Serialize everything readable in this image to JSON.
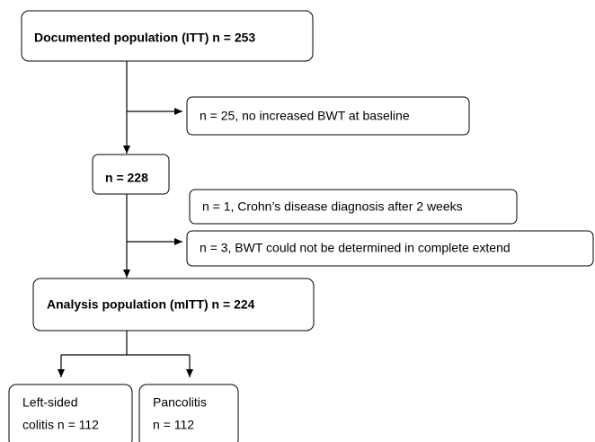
{
  "nodes": [
    {
      "lines": [
        "Documented population (ITT) n = 253"
      ]
    },
    {
      "lines": [
        "n = 25, no increased BWT at baseline"
      ]
    },
    {
      "lines": [
        "n = 228"
      ]
    },
    {
      "lines": [
        "n = 1, Crohn’s disease diagnosis after 2 weeks"
      ]
    },
    {
      "lines": [
        "n = 3, BWT could not be determined in complete extend"
      ]
    },
    {
      "lines": [
        "Analysis population (mITT) n = 224"
      ]
    },
    {
      "lines": [
        "Left-sided",
        "colitis n = 112"
      ]
    },
    {
      "lines": [
        "Pancolitis",
        "n = 112"
      ]
    }
  ]
}
